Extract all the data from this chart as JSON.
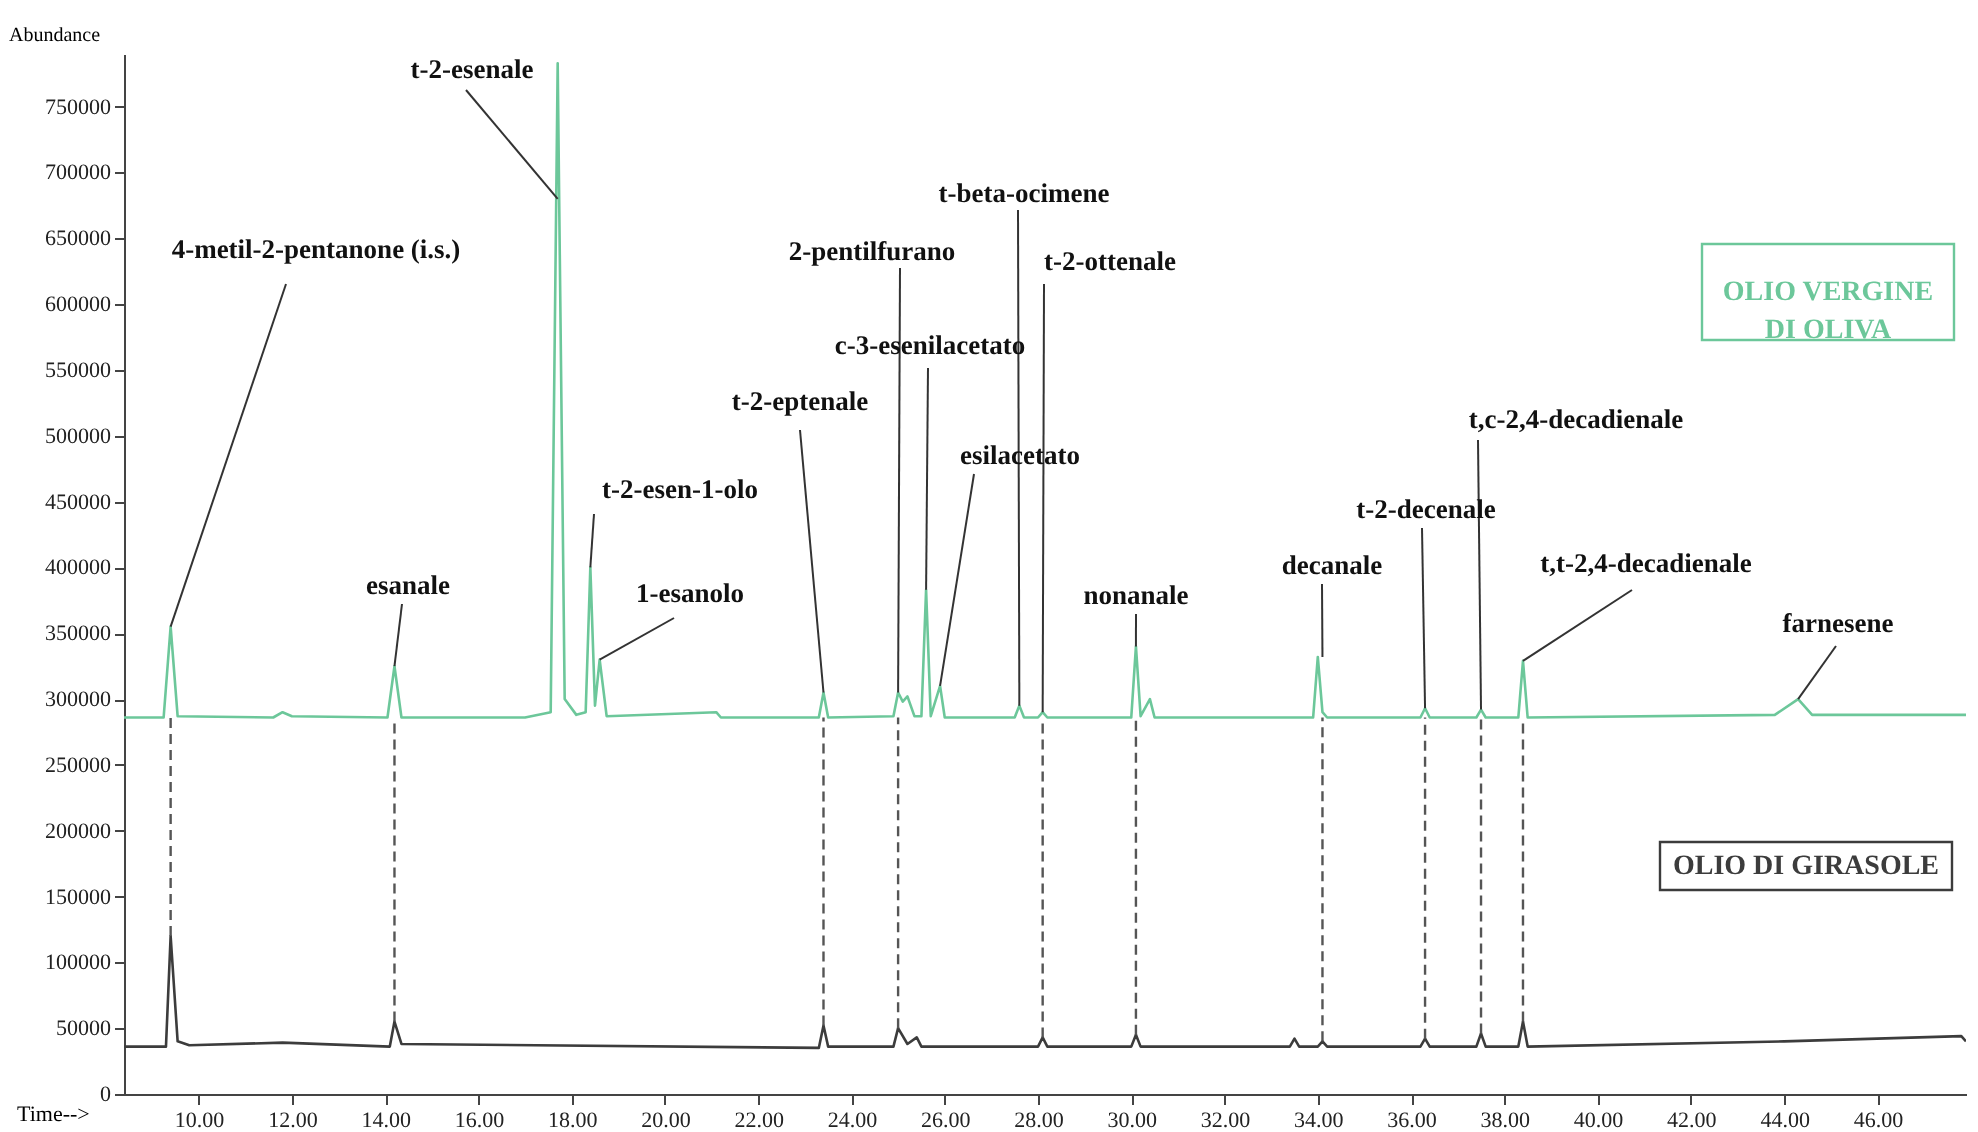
{
  "chart_data": {
    "type": "line",
    "xlabel": "Time-->",
    "ylabel": "Abundance",
    "xlim": [
      8.4,
      47.9
    ],
    "ylim": [
      0,
      790000
    ],
    "xticks": [
      {
        "value": 10,
        "label": "10.00"
      },
      {
        "value": 12,
        "label": "12.00"
      },
      {
        "value": 14,
        "label": "14.00"
      },
      {
        "value": 16,
        "label": "16.00"
      },
      {
        "value": 18,
        "label": "18.00"
      },
      {
        "value": 20,
        "label": "20.00"
      },
      {
        "value": 22,
        "label": "22.00"
      },
      {
        "value": 24,
        "label": "24.00"
      },
      {
        "value": 26,
        "label": "26.00"
      },
      {
        "value": 28,
        "label": "28.00"
      },
      {
        "value": 30,
        "label": "30.00"
      },
      {
        "value": 32,
        "label": "32.00"
      },
      {
        "value": 34,
        "label": "34.00"
      },
      {
        "value": 36,
        "label": "36.00"
      },
      {
        "value": 38,
        "label": "38.00"
      },
      {
        "value": 40,
        "label": "40.00"
      },
      {
        "value": 42,
        "label": "42.00"
      },
      {
        "value": 44,
        "label": "44.00"
      },
      {
        "value": 46,
        "label": "46.00"
      }
    ],
    "yticks": [
      0,
      50000,
      100000,
      150000,
      200000,
      250000,
      300000,
      350000,
      400000,
      450000,
      500000,
      550000,
      600000,
      650000,
      700000,
      750000
    ],
    "series": [
      {
        "name": "OLIO VERGINE DI OLIVA",
        "color": "#6cc79a",
        "x": [
          8.4,
          9.25,
          9.4,
          9.55,
          11.6,
          11.8,
          12.0,
          14.05,
          14.2,
          14.35,
          17.0,
          17.55,
          17.7,
          17.85,
          18.1,
          18.3,
          18.4,
          18.5,
          18.6,
          18.75,
          21.1,
          21.2,
          23.3,
          23.4,
          23.5,
          24.9,
          25.0,
          25.1,
          25.2,
          25.35,
          25.5,
          25.6,
          25.7,
          25.9,
          26.0,
          27.5,
          27.6,
          27.7,
          28.0,
          28.1,
          28.2,
          30.0,
          30.1,
          30.2,
          30.4,
          30.5,
          33.9,
          34.0,
          34.1,
          34.2,
          36.2,
          36.3,
          36.4,
          37.4,
          37.5,
          37.6,
          38.3,
          38.4,
          38.5,
          43.8,
          44.3,
          44.6,
          47.9
        ],
        "values": [
          286000,
          286000,
          355000,
          287000,
          286000,
          290000,
          287000,
          286000,
          325000,
          286000,
          286000,
          290000,
          783000,
          300000,
          288000,
          290000,
          400000,
          295000,
          330000,
          287000,
          290000,
          286000,
          286000,
          305000,
          286000,
          287000,
          305000,
          298000,
          302000,
          287000,
          287000,
          383000,
          287000,
          310000,
          286000,
          286000,
          295000,
          286000,
          286000,
          290000,
          286000,
          286000,
          340000,
          287000,
          300000,
          286000,
          286000,
          332000,
          290000,
          286000,
          286000,
          293000,
          286000,
          286000,
          292000,
          286000,
          286000,
          329000,
          286000,
          288000,
          300000,
          288000,
          288000
        ]
      },
      {
        "name": "OLIO DI GIRASOLE",
        "color": "#3c3c3c",
        "x": [
          8.4,
          9.3,
          9.4,
          9.55,
          9.8,
          11.8,
          14.1,
          14.2,
          14.35,
          23.3,
          23.4,
          23.5,
          24.9,
          25.0,
          25.2,
          25.4,
          25.5,
          28.0,
          28.1,
          28.2,
          30.0,
          30.1,
          30.2,
          33.4,
          33.5,
          33.6,
          34.0,
          34.1,
          34.2,
          36.2,
          36.3,
          36.4,
          37.4,
          37.5,
          37.6,
          38.3,
          38.4,
          38.5,
          44.0,
          47.8,
          47.9
        ],
        "values": [
          36000,
          36000,
          120000,
          40000,
          37000,
          39000,
          36000,
          55000,
          38000,
          35000,
          52000,
          36000,
          36000,
          50000,
          38000,
          43000,
          36000,
          36000,
          43000,
          36000,
          36000,
          45000,
          36000,
          36000,
          42000,
          36000,
          36000,
          40000,
          36000,
          36000,
          42000,
          36000,
          36000,
          46000,
          36000,
          36000,
          55000,
          36000,
          40000,
          44000,
          40000
        ]
      }
    ],
    "ref_lines": [
      {
        "axis": "x",
        "value": 9.4,
        "line_style": "dashed",
        "color": "#555555"
      },
      {
        "axis": "x",
        "value": 14.2,
        "line_style": "dashed",
        "color": "#555555"
      },
      {
        "axis": "x",
        "value": 23.4,
        "line_style": "dashed",
        "color": "#555555"
      },
      {
        "axis": "x",
        "value": 25.0,
        "line_style": "dashed",
        "color": "#555555"
      },
      {
        "axis": "x",
        "value": 28.1,
        "line_style": "dashed",
        "color": "#555555"
      },
      {
        "axis": "x",
        "value": 30.1,
        "line_style": "dashed",
        "color": "#555555"
      },
      {
        "axis": "x",
        "value": 34.1,
        "line_style": "dashed",
        "color": "#555555"
      },
      {
        "axis": "x",
        "value": 36.3,
        "line_style": "dashed",
        "color": "#555555"
      },
      {
        "axis": "x",
        "value": 37.5,
        "line_style": "dashed",
        "color": "#555555"
      },
      {
        "axis": "x",
        "value": 38.4,
        "line_style": "dashed",
        "color": "#555555"
      }
    ],
    "annotations": [
      {
        "text": "4-metil-2-pentanone (i.s.)",
        "x": 9.4,
        "y": 355000
      },
      {
        "text": "esanale",
        "x": 14.2,
        "y": 325000
      },
      {
        "text": "t-2-esenale",
        "x": 17.7,
        "y": 680000
      },
      {
        "text": "t-2-esen-1-olo",
        "x": 18.4,
        "y": 400000
      },
      {
        "text": "1-esanolo",
        "x": 18.6,
        "y": 330000
      },
      {
        "text": "t-2-eptenale",
        "x": 23.4,
        "y": 305000
      },
      {
        "text": "2-pentilfurano",
        "x": 25.0,
        "y": 305000
      },
      {
        "text": "c-3-esenilacetato",
        "x": 25.6,
        "y": 383000
      },
      {
        "text": "esilacetato",
        "x": 25.9,
        "y": 310000
      },
      {
        "text": "t-beta-ocimene",
        "x": 27.6,
        "y": 295000
      },
      {
        "text": "t-2-ottenale",
        "x": 28.1,
        "y": 290000
      },
      {
        "text": "nonanale",
        "x": 30.1,
        "y": 340000
      },
      {
        "text": "decanale",
        "x": 34.1,
        "y": 332000
      },
      {
        "text": "t-2-decenale",
        "x": 36.3,
        "y": 293000
      },
      {
        "text": "t,c-2,4-decadienale",
        "x": 37.5,
        "y": 292000
      },
      {
        "text": "t,t-2,4-decadienale",
        "x": 38.4,
        "y": 329000
      },
      {
        "text": "farnesene",
        "x": 44.3,
        "y": 300000
      }
    ]
  }
}
